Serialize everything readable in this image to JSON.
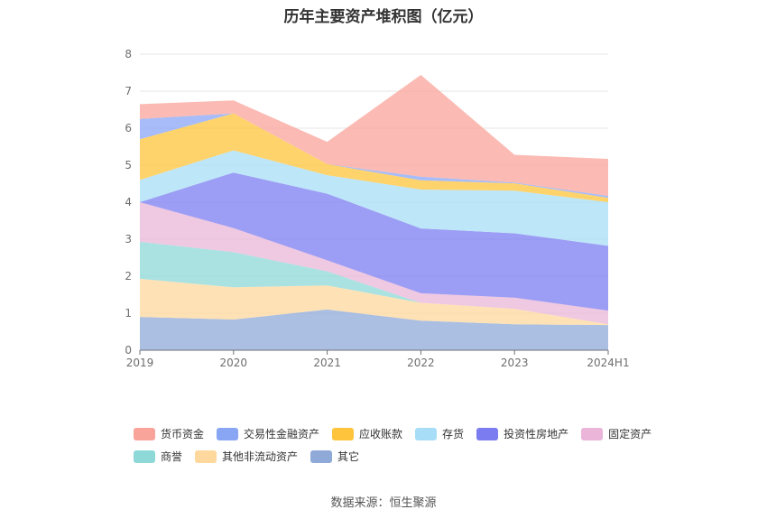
{
  "chart_data": {
    "type": "area",
    "stacked": true,
    "title": "历年主要资产堆积图（亿元）",
    "source": "数据来源：恒生聚源",
    "categories": [
      "2019",
      "2020",
      "2021",
      "2022",
      "2023",
      "2024H1"
    ],
    "y_ticks": [
      "0",
      "1",
      "2",
      "3",
      "4",
      "5",
      "6",
      "7",
      "8"
    ],
    "ylim": [
      0,
      8
    ],
    "grid": true,
    "legend_position": "bottom",
    "series": [
      {
        "name": "其它",
        "color": "#8fa9d8",
        "values": [
          0.9,
          0.83,
          1.1,
          0.8,
          0.7,
          0.68
        ]
      },
      {
        "name": "其他非流动资产",
        "color": "#fed89c",
        "values": [
          1.03,
          0.87,
          0.65,
          0.48,
          0.42,
          0.02
        ]
      },
      {
        "name": "商誉",
        "color": "#8ed8d8",
        "values": [
          1.0,
          0.95,
          0.38,
          0.0,
          0.0,
          0.0
        ]
      },
      {
        "name": "固定资产",
        "color": "#eab5d8",
        "values": [
          1.07,
          0.65,
          0.3,
          0.26,
          0.3,
          0.37
        ]
      },
      {
        "name": "投资性房地产",
        "color": "#7b7cf0",
        "values": [
          0.0,
          1.5,
          1.8,
          1.75,
          1.74,
          1.75
        ]
      },
      {
        "name": "存货",
        "color": "#a7ddf7",
        "values": [
          0.6,
          0.6,
          0.5,
          1.05,
          1.15,
          1.18
        ]
      },
      {
        "name": "应收账款",
        "color": "#fec43b",
        "values": [
          1.1,
          1.0,
          0.3,
          0.25,
          0.2,
          0.12
        ]
      },
      {
        "name": "交易性金融资产",
        "color": "#89a6f5",
        "values": [
          0.55,
          0.0,
          0.0,
          0.1,
          0.02,
          0.05
        ]
      },
      {
        "name": "货币资金",
        "color": "#f9a49b",
        "values": [
          0.4,
          0.35,
          0.6,
          2.75,
          0.75,
          1.0
        ]
      }
    ]
  }
}
